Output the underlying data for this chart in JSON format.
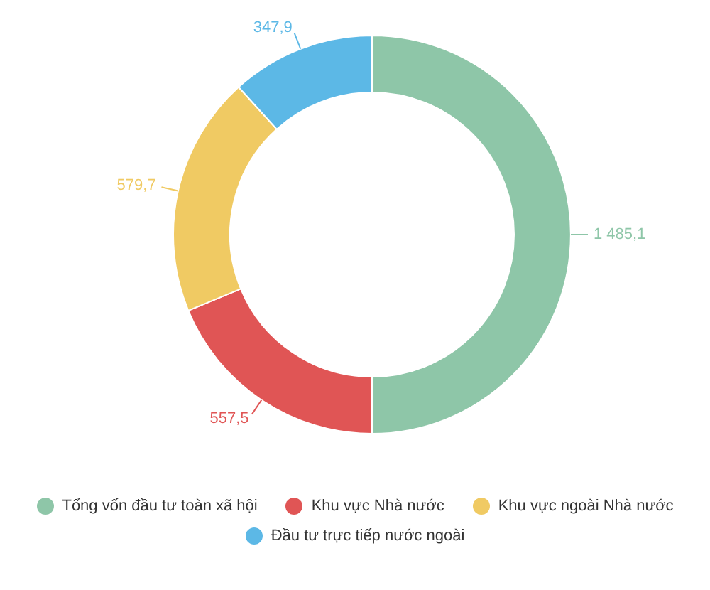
{
  "chart_data": {
    "type": "donut",
    "categories": [
      "Tổng vốn đầu tư toàn xã hội",
      "Khu vực Nhà nước",
      "Khu vực ngoài Nhà nước",
      "Đầu tư trực tiếp nước ngoài"
    ],
    "values": [
      1485.1,
      557.5,
      579.7,
      347.9
    ],
    "colors": [
      "#8ec6a8",
      "#e05555",
      "#f0ca63",
      "#5cb8e6"
    ],
    "value_labels": [
      "1 485,1",
      "557,5",
      "579,7",
      "347,9"
    ],
    "legend": "bottom"
  }
}
